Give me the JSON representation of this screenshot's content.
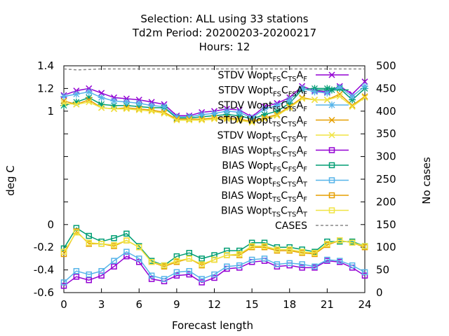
{
  "chart_data": {
    "type": "line",
    "title_lines": [
      "Selection: ALL using    33 stations",
      "Td2m   Period: 20200203-20200217",
      "Hours:  12"
    ],
    "xlabel": "Forecast length",
    "ylabel": "deg C",
    "y2label": "No cases",
    "xlim": [
      0,
      24
    ],
    "ylim": [
      -0.6,
      1.4
    ],
    "y2lim": [
      0,
      500
    ],
    "xticks": [
      0,
      3,
      6,
      9,
      12,
      15,
      18,
      21,
      24
    ],
    "yticks": [
      -0.6,
      -0.4,
      -0.2,
      0,
      0.2,
      0.4,
      0.6,
      0.8,
      1,
      1.2,
      1.4
    ],
    "ytick_labels": [
      "-0.6",
      "-0.4",
      "-0.2",
      "0",
      "",
      "",
      "",
      "",
      "1",
      "1.2",
      "1.4"
    ],
    "y2ticks": [
      0,
      50,
      100,
      150,
      200,
      250,
      300,
      350,
      400,
      450,
      500
    ],
    "legend_position": "top-right",
    "x": [
      0,
      1,
      2,
      3,
      4,
      5,
      6,
      7,
      8,
      9,
      10,
      11,
      12,
      13,
      14,
      15,
      16,
      17,
      18,
      19,
      20,
      21,
      22,
      23,
      24
    ],
    "series": [
      {
        "label_prefix": "STDV Wopt",
        "sub1": "FS",
        "sub2": "TS",
        "sub3": "F",
        "axis": "y1",
        "color": "#9400d3",
        "marker": "x",
        "values": [
          1.14,
          1.18,
          1.2,
          1.16,
          1.12,
          1.11,
          1.1,
          1.08,
          1.06,
          0.96,
          0.96,
          0.99,
          1.0,
          1.02,
          1.01,
          0.95,
          1.04,
          1.07,
          1.12,
          1.22,
          1.18,
          1.17,
          1.22,
          1.15,
          1.26
        ]
      },
      {
        "label_prefix": "STDV Wopt",
        "sub1": "FS",
        "sub2": "FS",
        "sub3": "F",
        "axis": "y1",
        "color": "#009e73",
        "marker": "*",
        "values": [
          1.05,
          1.08,
          1.12,
          1.06,
          1.05,
          1.05,
          1.04,
          1.03,
          1.03,
          0.94,
          0.94,
          0.95,
          0.96,
          0.97,
          0.96,
          0.93,
          0.97,
          1.0,
          1.07,
          1.19,
          1.2,
          1.2,
          1.2,
          1.1,
          1.2
        ]
      },
      {
        "label_prefix": "STDV Wopt",
        "sub1": "FS",
        "sub2": "TS",
        "sub3": "F",
        "axis": "y1",
        "color": "#56b4e9",
        "marker": "*",
        "values": [
          1.13,
          1.15,
          1.17,
          1.12,
          1.09,
          1.08,
          1.07,
          1.05,
          1.04,
          0.95,
          0.95,
          0.97,
          0.98,
          1.0,
          0.99,
          0.94,
          1.02,
          1.05,
          1.1,
          1.2,
          1.17,
          1.16,
          1.21,
          1.13,
          1.22
        ]
      },
      {
        "label_prefix": "STDV Wopt",
        "sub1": "TS",
        "sub2": "TS",
        "sub3": "F",
        "axis": "y1",
        "color": "#e69f00",
        "marker": "x",
        "values": [
          1.09,
          1.06,
          1.1,
          1.03,
          1.02,
          1.03,
          1.02,
          1.01,
          0.99,
          0.93,
          0.93,
          0.93,
          0.94,
          0.94,
          0.93,
          0.91,
          0.94,
          0.97,
          1.04,
          1.12,
          1.1,
          1.1,
          1.15,
          1.05,
          1.13
        ]
      },
      {
        "label_prefix": "STDV Wopt",
        "sub1": "TS",
        "sub2": "TS",
        "sub3": "T",
        "axis": "y1",
        "color": "#f0e442",
        "marker": "x",
        "values": [
          1.07,
          1.06,
          1.08,
          1.03,
          1.02,
          1.02,
          1.01,
          1.0,
          0.98,
          0.92,
          0.92,
          0.92,
          0.93,
          0.93,
          0.92,
          0.9,
          0.93,
          0.96,
          1.03,
          1.11,
          1.1,
          1.1,
          1.13,
          1.04,
          1.12
        ]
      },
      {
        "label_prefix": "BIAS Wopt",
        "sub1": "FS",
        "sub2": "TS",
        "sub3": "F",
        "axis": "y1",
        "color": "#9400d3",
        "marker": "sq",
        "values": [
          -0.54,
          -0.46,
          -0.49,
          -0.45,
          -0.37,
          -0.28,
          -0.33,
          -0.48,
          -0.5,
          -0.45,
          -0.44,
          -0.51,
          -0.47,
          -0.39,
          -0.38,
          -0.33,
          -0.32,
          -0.37,
          -0.36,
          -0.38,
          -0.38,
          -0.32,
          -0.33,
          -0.38,
          -0.45
        ]
      },
      {
        "label_prefix": "BIAS Wopt",
        "sub1": "FS",
        "sub2": "FS",
        "sub3": "F",
        "axis": "y1",
        "color": "#009e73",
        "marker": "sq",
        "values": [
          -0.21,
          -0.03,
          -0.1,
          -0.15,
          -0.12,
          -0.08,
          -0.19,
          -0.32,
          -0.36,
          -0.28,
          -0.25,
          -0.3,
          -0.27,
          -0.23,
          -0.23,
          -0.16,
          -0.16,
          -0.2,
          -0.2,
          -0.22,
          -0.24,
          -0.15,
          -0.15,
          -0.15,
          -0.19
        ]
      },
      {
        "label_prefix": "BIAS Wopt",
        "sub1": "FS",
        "sub2": "TS",
        "sub3": "T",
        "axis": "y1",
        "color": "#56b4e9",
        "marker": "sq",
        "values": [
          -0.51,
          -0.41,
          -0.44,
          -0.41,
          -0.32,
          -0.24,
          -0.3,
          -0.45,
          -0.48,
          -0.42,
          -0.41,
          -0.48,
          -0.44,
          -0.37,
          -0.36,
          -0.31,
          -0.3,
          -0.35,
          -0.34,
          -0.35,
          -0.37,
          -0.31,
          -0.32,
          -0.36,
          -0.42
        ]
      },
      {
        "label_prefix": "BIAS Wopt",
        "sub1": "TS",
        "sub2": "TS",
        "sub3": "F",
        "axis": "y1",
        "color": "#e69f00",
        "marker": "sq",
        "values": [
          -0.26,
          -0.06,
          -0.17,
          -0.17,
          -0.19,
          -0.14,
          -0.2,
          -0.33,
          -0.37,
          -0.33,
          -0.3,
          -0.36,
          -0.31,
          -0.27,
          -0.27,
          -0.2,
          -0.2,
          -0.23,
          -0.23,
          -0.25,
          -0.26,
          -0.18,
          -0.14,
          -0.16,
          -0.2
        ]
      },
      {
        "label_prefix": "BIAS Wopt",
        "sub1": "TS",
        "sub2": "TS",
        "sub3": "T",
        "axis": "y1",
        "color": "#f0e442",
        "marker": "sq",
        "values": [
          -0.24,
          -0.07,
          -0.16,
          -0.17,
          -0.18,
          -0.14,
          -0.2,
          -0.33,
          -0.36,
          -0.32,
          -0.3,
          -0.35,
          -0.31,
          -0.27,
          -0.26,
          -0.19,
          -0.19,
          -0.22,
          -0.22,
          -0.24,
          -0.25,
          -0.17,
          -0.14,
          -0.16,
          -0.19
        ]
      },
      {
        "label": "CASES",
        "axis": "y2",
        "color": "#888888",
        "marker": "none",
        "dashed": true,
        "values": [
          493,
          491,
          492,
          493,
          493,
          493,
          493,
          493,
          493,
          493,
          493,
          493,
          493,
          493,
          493,
          493,
          493,
          493,
          493,
          493,
          493,
          493,
          493,
          493,
          493
        ]
      }
    ]
  }
}
